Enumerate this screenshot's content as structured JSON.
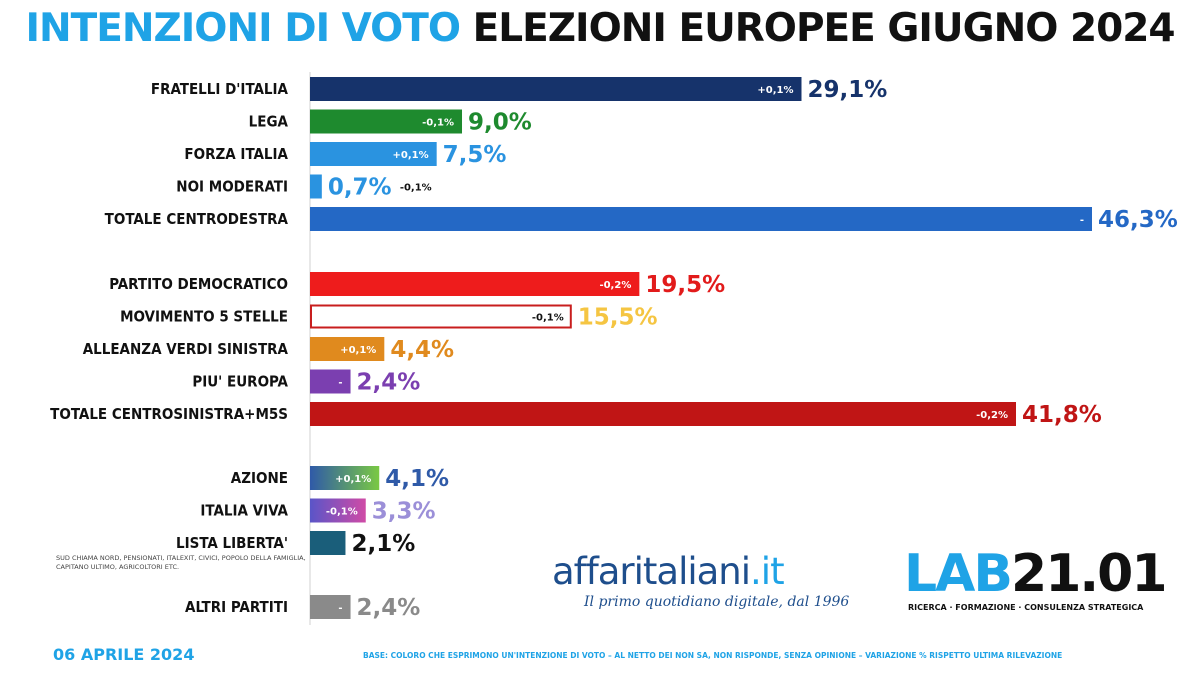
{
  "title": {
    "part1": "INTENZIONI DI VOTO",
    "part2": "ELEZIONI EUROPEE GIUGNO 2024"
  },
  "chart_data": {
    "type": "bar",
    "orientation": "horizontal",
    "value_unit": "%",
    "xlim": [
      0,
      46.3
    ],
    "groups": [
      {
        "name": "centrodestra",
        "bars": [
          {
            "label": "FRATELLI D'ITALIA",
            "value": 29.1,
            "display": "29,1%",
            "variation": "+0,1%",
            "color": "#16336b",
            "value_color": "#16336b"
          },
          {
            "label": "LEGA",
            "value": 9.0,
            "display": "9,0%",
            "variation": "-0,1%",
            "color": "#1e8a2e",
            "value_color": "#1e8a2e"
          },
          {
            "label": "FORZA ITALIA",
            "value": 7.5,
            "display": "7,5%",
            "variation": "+0,1%",
            "color": "#2a93e0",
            "value_color": "#2a93e0"
          },
          {
            "label": "NOI MODERATI",
            "value": 0.7,
            "display": "0,7%",
            "variation": "-0,1%",
            "color": "#2a93e0",
            "value_color": "#2a93e0",
            "variation_outside": true
          },
          {
            "label": "TOTALE CENTRODESTRA",
            "value": 46.3,
            "display": "46,3%",
            "variation": "-",
            "color": "#2468c5",
            "value_color": "#2468c5"
          }
        ]
      },
      {
        "name": "centrosinistra",
        "bars": [
          {
            "label": "PARTITO DEMOCRATICO",
            "value": 19.5,
            "display": "19,5%",
            "variation": "-0,2%",
            "color": "#ee1c1c",
            "value_color": "#e21b1b"
          },
          {
            "label": "MOVIMENTO 5 STELLE",
            "value": 15.5,
            "display": "15,5%",
            "variation": "-0,1%",
            "color": "#ffffff",
            "stroke": "#c81e1e",
            "value_color": "#f5c542",
            "variation_dark": true
          },
          {
            "label": "ALLEANZA VERDI SINISTRA",
            "value": 4.4,
            "display": "4,4%",
            "variation": "+0,1%",
            "color": "#e08a1e",
            "value_color": "#e08a1e"
          },
          {
            "label": "PIU' EUROPA",
            "value": 2.4,
            "display": "2,4%",
            "variation": "-",
            "color": "#7b3fb0",
            "value_color": "#7b3fb0"
          },
          {
            "label": "TOTALE CENTROSINISTRA+M5S",
            "value": 41.8,
            "display": "41,8%",
            "variation": "-0,2%",
            "color": "#c01515",
            "value_color": "#c01515"
          }
        ]
      },
      {
        "name": "altri",
        "bars": [
          {
            "label": "AZIONE",
            "value": 4.1,
            "display": "4,1%",
            "variation": "+0,1%",
            "color": "#2f5aa8",
            "value_color": "#2f5aa8",
            "gradient_to": "#7ac943"
          },
          {
            "label": "ITALIA VIVA",
            "value": 3.3,
            "display": "3,3%",
            "variation": "-0,1%",
            "color": "#5a55c8",
            "value_color": "#9b8fd8",
            "gradient_to": "#d04ba6"
          },
          {
            "label": "LISTA LIBERTA'",
            "value": 2.1,
            "display": "2,1%",
            "variation": "",
            "color": "#1a5e7a",
            "value_color": "#111111"
          },
          {
            "label": "ALTRI PARTITI",
            "value": 2.4,
            "display": "2,4%",
            "variation": "-",
            "color": "#8a8a8a",
            "value_color": "#8a8a8a"
          }
        ]
      }
    ]
  },
  "lista_liberta_note": "SUD CHIAMA NORD, PENSIONATI, ITALEXIT, CIVICI, POPOLO DELLA FAMIGLIA, CAPITANO ULTIMO, AGRICOLTORI ETC.",
  "footer": {
    "date": "06 APRILE 2024",
    "base": "BASE: COLORO CHE ESPRIMONO UN'INTENZIONE DI VOTO – AL NETTO DEI NON SA, NON RISPONDE, SENZA OPINIONE – VARIAZIONE % RISPETTO ULTIMA RILEVAZIONE"
  },
  "brand_affaritaliani": {
    "name": "affaritaliani",
    "domain": ".it",
    "tagline": "Il primo quotidiano digitale, dal 1996"
  },
  "brand_lab": {
    "lab": "LAB",
    "number": "21.01",
    "sub": "RICERCA · FORMAZIONE · CONSULENZA STRATEGICA"
  }
}
